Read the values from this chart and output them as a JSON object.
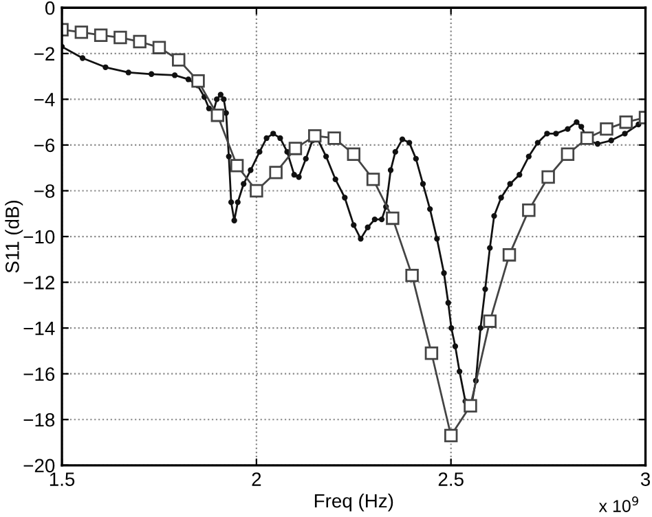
{
  "chart_data": {
    "type": "line",
    "xlabel": "Freq (Hz)",
    "ylabel": "S11 (dB)",
    "annotations": [
      "x 10$^{9}$"
    ],
    "xlim": [
      1.5,
      3
    ],
    "xticks": [
      1.5,
      2,
      2.5,
      3
    ],
    "ylim": [
      -20,
      0
    ],
    "yticks": [
      -20,
      -18,
      -16,
      -14,
      -12,
      -10,
      -8,
      -6,
      -4,
      -2,
      0
    ],
    "grid": true,
    "line_style": "solid",
    "series": [
      {
        "color": "#111111",
        "marker": "circle",
        "x": [
          1.5,
          1.553,
          1.612,
          1.671,
          1.73,
          1.79,
          1.825,
          1.849,
          1.866,
          1.878,
          1.89,
          1.898,
          1.908,
          1.916,
          1.922,
          1.929,
          1.935,
          1.943,
          1.952,
          1.967,
          1.985,
          2.008,
          2.026,
          2.043,
          2.061,
          2.079,
          2.097,
          2.109,
          2.127,
          2.144,
          2.156,
          2.179,
          2.203,
          2.227,
          2.25,
          2.268,
          2.286,
          2.304,
          2.322,
          2.333,
          2.345,
          2.357,
          2.375,
          2.393,
          2.41,
          2.428,
          2.446,
          2.464,
          2.482,
          2.493,
          2.501,
          2.511,
          2.522,
          2.537,
          2.553,
          2.564,
          2.576,
          2.588,
          2.6,
          2.611,
          2.629,
          2.652,
          2.676,
          2.7,
          2.723,
          2.747,
          2.77,
          2.8,
          2.823,
          2.835,
          2.853,
          2.877,
          2.912,
          2.947,
          2.982,
          3.0
        ],
        "values": [
          -1.7,
          -2.2,
          -2.6,
          -2.83,
          -2.9,
          -2.95,
          -3.13,
          -3.4,
          -3.9,
          -4.4,
          -4.5,
          -4.0,
          -3.8,
          -4.0,
          -4.6,
          -6.5,
          -8.5,
          -9.3,
          -8.5,
          -7.7,
          -7.1,
          -6.3,
          -5.7,
          -5.5,
          -5.7,
          -6.3,
          -7.3,
          -7.4,
          -6.6,
          -5.8,
          -5.7,
          -6.5,
          -7.5,
          -8.3,
          -9.5,
          -10.1,
          -9.6,
          -9.25,
          -9.25,
          -8.7,
          -7.1,
          -6.3,
          -5.75,
          -5.9,
          -6.6,
          -7.7,
          -8.8,
          -10.1,
          -11.6,
          -12.9,
          -14.0,
          -14.8,
          -15.9,
          -17.2,
          -17.35,
          -16.3,
          -14.0,
          -12.3,
          -10.5,
          -9.1,
          -8.3,
          -7.7,
          -7.3,
          -6.5,
          -5.9,
          -5.5,
          -5.5,
          -5.3,
          -5.0,
          -5.2,
          -5.8,
          -5.95,
          -5.8,
          -5.5,
          -5.1,
          -4.8
        ]
      },
      {
        "color": "#444444",
        "marker": "square",
        "x": [
          1.5,
          1.55,
          1.6,
          1.65,
          1.7,
          1.75,
          1.8,
          1.85,
          1.9,
          1.95,
          2.0,
          2.05,
          2.1,
          2.15,
          2.2,
          2.25,
          2.3,
          2.35,
          2.4,
          2.45,
          2.5,
          2.55,
          2.6,
          2.65,
          2.7,
          2.75,
          2.8,
          2.85,
          2.9,
          2.95,
          3.0
        ],
        "values": [
          -0.96,
          -1.07,
          -1.2,
          -1.3,
          -1.48,
          -1.74,
          -2.28,
          -3.2,
          -4.7,
          -6.9,
          -8.0,
          -7.2,
          -6.15,
          -5.6,
          -5.7,
          -6.4,
          -7.5,
          -9.2,
          -11.7,
          -15.1,
          -18.7,
          -17.4,
          -13.7,
          -10.8,
          -8.85,
          -7.4,
          -6.4,
          -5.7,
          -5.3,
          -5.0,
          -4.8
        ]
      }
    ]
  }
}
